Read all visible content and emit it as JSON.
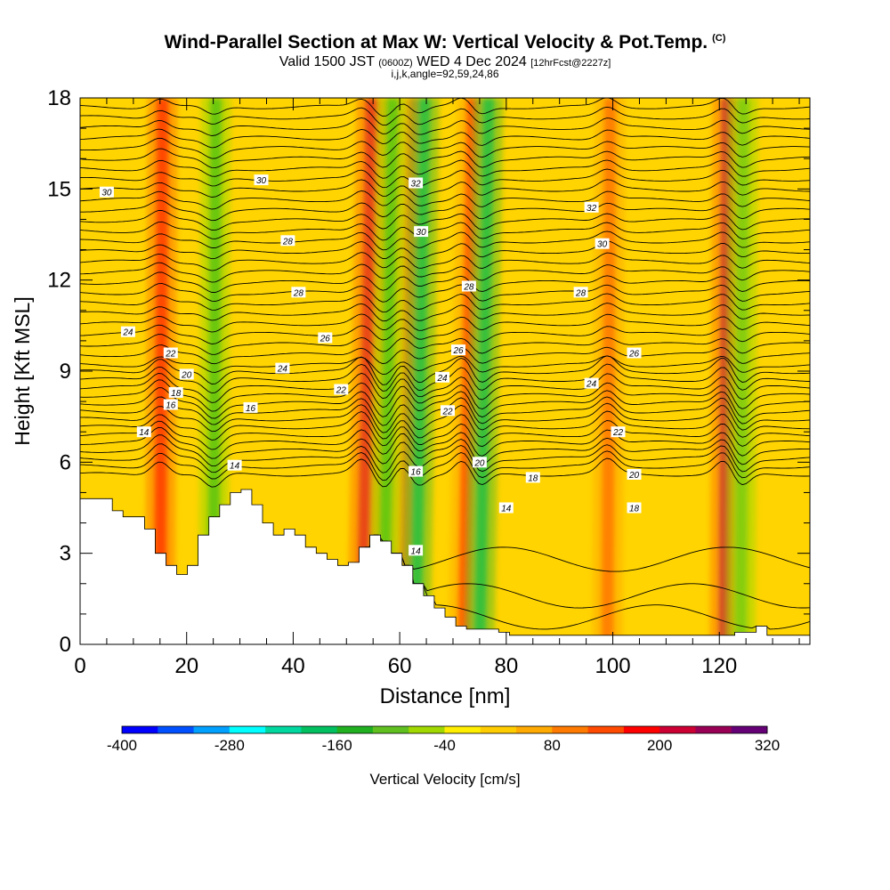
{
  "title": {
    "main": "Wind-Parallel Section at Max W: Vertical Velocity & Pot.Temp.",
    "units_tag": "(C)",
    "valid_pre": "Valid 1500 JST",
    "valid_z": "(0600Z)",
    "valid_post": "WED 4 Dec 2024",
    "fcst": "[12hrFcst@2227z]",
    "ijk": "i,j,k,angle=92,59,24,86"
  },
  "chart_data": {
    "type": "heatmap",
    "xlabel": "Distance [nm]",
    "ylabel": "Height [Kft MSL]",
    "xlim": [
      0,
      137
    ],
    "ylim": [
      0,
      18
    ],
    "x_ticks": [
      "0",
      "20",
      "40",
      "60",
      "80",
      "100",
      "120"
    ],
    "y_ticks": [
      "0",
      "3",
      "6",
      "9",
      "12",
      "15",
      "18"
    ],
    "colorbar": {
      "label": "Vertical Velocity [cm/s]",
      "tick_labels": [
        "-400",
        "-280",
        "-160",
        "-40",
        "80",
        "200",
        "320"
      ],
      "range": [
        -400,
        320
      ],
      "step": 40,
      "colors": [
        "#0000ff",
        "#0050ff",
        "#00a0ff",
        "#00ffff",
        "#00d8a0",
        "#00c060",
        "#20b020",
        "#60c020",
        "#a0d800",
        "#ffee00",
        "#ffcc00",
        "#ffaa00",
        "#ff7a00",
        "#ff4a00",
        "#ff0000",
        "#cc0033",
        "#990055",
        "#660077"
      ]
    },
    "updraft_cores": [
      {
        "x": 15,
        "w": 180
      },
      {
        "x": 53,
        "w": 200
      },
      {
        "x": 61,
        "w": 130
      },
      {
        "x": 72,
        "w": 160
      },
      {
        "x": 99,
        "w": 150
      },
      {
        "x": 121,
        "w": 240
      }
    ],
    "downdraft_cores": [
      {
        "x": 25,
        "w": -140
      },
      {
        "x": 63,
        "w": -200
      },
      {
        "x": 75,
        "w": -180
      },
      {
        "x": 57,
        "w": -150
      },
      {
        "x": 124,
        "w": -110
      }
    ],
    "potential_temperature_contours": {
      "levels": [
        14,
        16,
        18,
        20,
        22,
        24,
        26,
        28,
        30,
        32
      ],
      "labels": [
        "14",
        "14",
        "14",
        "14",
        "16",
        "16",
        "16",
        "18",
        "18",
        "18",
        "20",
        "20",
        "20",
        "22",
        "22",
        "22",
        "22",
        "24",
        "24",
        "24",
        "24",
        "26",
        "26",
        "26",
        "28",
        "28",
        "28",
        "28",
        "30",
        "30",
        "30",
        "30",
        "32",
        "32"
      ]
    },
    "terrain_heights_kft": [
      4.8,
      4.8,
      4.8,
      4.4,
      4.2,
      4.2,
      3.8,
      3.0,
      2.6,
      2.3,
      2.6,
      3.6,
      4.2,
      4.6,
      5.0,
      5.1,
      4.6,
      4.0,
      3.6,
      3.8,
      3.6,
      3.2,
      3.0,
      2.8,
      2.6,
      2.7,
      3.2,
      3.6,
      3.4,
      3.0,
      2.6,
      2.0,
      1.6,
      1.2,
      0.9,
      0.6,
      0.5,
      0.5,
      0.5,
      0.4,
      0.3,
      0.3,
      0.3,
      0.3,
      0.3,
      0.3,
      0.3,
      0.3,
      0.3,
      0.3,
      0.3,
      0.3,
      0.3,
      0.3,
      0.3,
      0.3,
      0.3,
      0.3,
      0.3,
      0.3,
      0.3,
      0.4,
      0.4,
      0.6,
      0.3,
      0.3,
      0.3,
      0.3
    ]
  }
}
